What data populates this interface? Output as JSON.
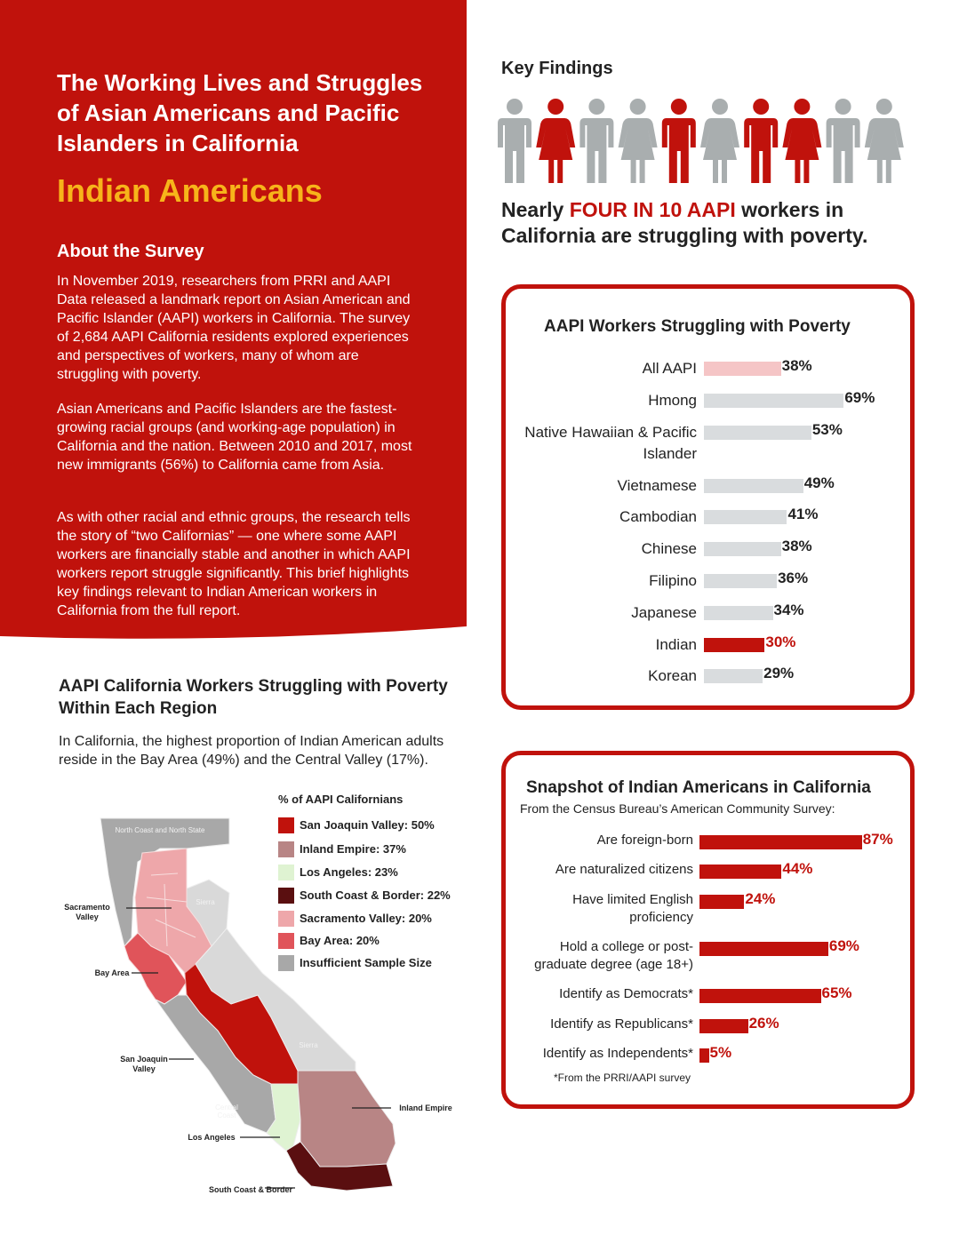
{
  "colors": {
    "brand_red": "#c0120c",
    "accent_yellow": "#f7b41a",
    "pink": "#f5c5c6",
    "bar_gray": "#d9dcde",
    "person_gray": "#a9aeaf"
  },
  "header": {
    "title": "The Working Lives and Struggles of Asian Americans and Pacific Islanders in California",
    "subtitle": "Indian Americans"
  },
  "about": {
    "heading": "About the Survey",
    "paragraphs": [
      "In November 2019, researchers from PRRI and AAPI Data released a landmark report on Asian American and Pacific Islander (AAPI) workers in California. The survey of 2,684 AAPI California residents explored experiences and perspectives of workers, many of whom are struggling with poverty.",
      "Asian Americans and Pacific Islanders are the fastest-growing racial groups (and working-age population) in California and the nation. Between 2010 and 2017, most new immigrants (56%) to California came from Asia.",
      "As with other racial and ethnic groups, the research tells the story of “two Californias” — one where some AAPI workers are financially stable and another in which AAPI workers report struggle significantly. This brief highlights key findings relevant to Indian American workers in California from the full report."
    ]
  },
  "key_findings": {
    "heading": "Key Findings",
    "people_icons": [
      "male",
      "female",
      "male",
      "female",
      "male",
      "female",
      "male",
      "female",
      "male",
      "female"
    ],
    "people_highlighted": [
      false,
      true,
      false,
      false,
      true,
      false,
      true,
      true,
      false,
      false
    ],
    "statement_prefix": "Nearly ",
    "statement_highlight": "FOUR IN 10 AAPI",
    "statement_suffix": " workers in California are struggling with poverty."
  },
  "poverty_chart": {
    "title": "AAPI Workers Struggling with Poverty"
  },
  "snapshot": {
    "title": "Snapshot of Indian Americans in California",
    "subtitle": "From the Census Bureau’s American Community Survey:",
    "footnote": "*From the PRRI/AAPI survey"
  },
  "region": {
    "title": "AAPI California Workers Struggling with Poverty Within Each Region",
    "text": "In California, the highest proportion of Indian American adults reside in the Bay Area (49%) and the Central Valley (17%).",
    "legend_title": "% of AAPI Californians",
    "legend": [
      {
        "label": "San Joaquin Valley: 50%",
        "color": "#c0120c"
      },
      {
        "label": "Inland Empire: 37%",
        "color": "#b88585"
      },
      {
        "label": "Los Angeles: 23%",
        "color": "#dff3d2"
      },
      {
        "label": "South Coast & Border: 22%",
        "color": "#5a0f10"
      },
      {
        "label": "Sacramento Valley: 20%",
        "color": "#eea7aa"
      },
      {
        "label": "Bay Area: 20%",
        "color": "#e0545a"
      },
      {
        "label": "Insufficient Sample Size",
        "color": "#a8a8a8"
      }
    ],
    "map_labels": {
      "north_coast": "North Coast and North State",
      "sierra_north": "Sierra",
      "sierra_south": "Sierra",
      "central_coast": "Central Coast",
      "sacramento_valley": "Sacramento Valley",
      "bay_area": "Bay Area",
      "san_joaquin": "San Joaquin Valley",
      "inland_empire": "Inland Empire",
      "los_angeles": "Los Angeles",
      "south_coast": "South Coast & Border"
    }
  },
  "chart_data": [
    {
      "type": "bar",
      "title": "AAPI Workers Struggling with Poverty",
      "orientation": "horizontal",
      "categories": [
        "All AAPI",
        "Hmong",
        "Native Hawaiian & Pacific Islander",
        "Vietnamese",
        "Cambodian",
        "Chinese",
        "Filipino",
        "Japanese",
        "Indian",
        "Korean"
      ],
      "values": [
        38,
        69,
        53,
        49,
        41,
        38,
        36,
        34,
        30,
        29
      ],
      "value_labels": [
        "38%",
        "69%",
        "53%",
        "49%",
        "41%",
        "38%",
        "36%",
        "34%",
        "30%",
        "29%"
      ],
      "bar_colors": [
        "#f5c5c6",
        "#d9dcde",
        "#d9dcde",
        "#d9dcde",
        "#d9dcde",
        "#d9dcde",
        "#d9dcde",
        "#d9dcde",
        "#c0120c",
        "#d9dcde"
      ],
      "xlim": [
        0,
        100
      ]
    },
    {
      "type": "bar",
      "title": "Snapshot of Indian Americans in California",
      "orientation": "horizontal",
      "categories": [
        "Are foreign-born",
        "Are naturalized citizens",
        "Have limited English proficiency",
        "Hold a college or post-graduate degree (age 18+)",
        "Identify as Democrats*",
        "Identify as Republicans*",
        "Identify as Independents*"
      ],
      "values": [
        87,
        44,
        24,
        69,
        65,
        26,
        5
      ],
      "value_labels": [
        "87%",
        "44%",
        "24%",
        "69%",
        "65%",
        "26%",
        "5%"
      ],
      "bar_color": "#c0120c",
      "xlim": [
        0,
        100
      ]
    }
  ]
}
